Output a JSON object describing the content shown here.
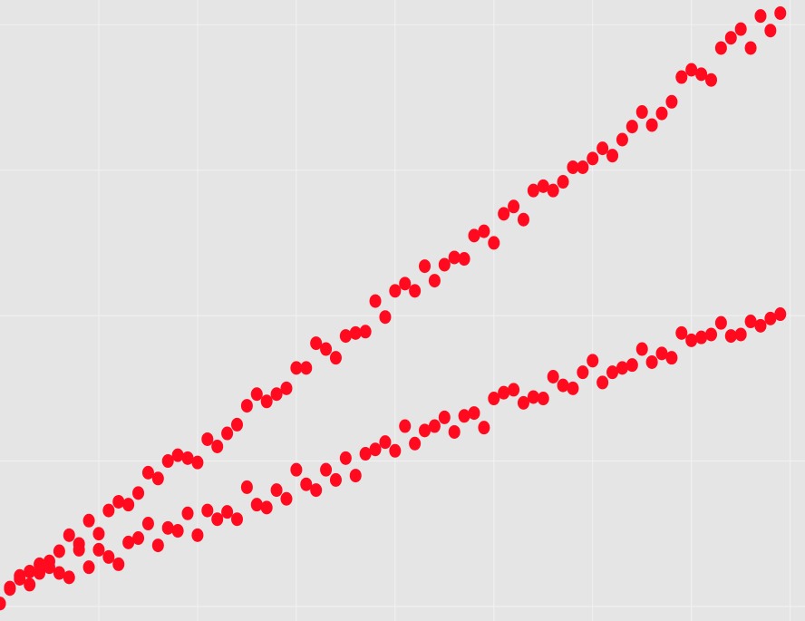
{
  "chart_data": {
    "type": "scatter",
    "x": [
      0,
      0.1,
      0.2,
      0.3,
      0.4,
      0.5,
      0.6,
      0.7,
      0.8,
      0.9,
      1,
      1.1,
      1.2,
      1.3,
      1.4,
      1.5,
      1.6,
      1.7,
      1.8,
      1.9,
      2,
      2.1,
      2.2,
      2.3,
      2.4,
      2.5,
      2.6,
      2.7,
      2.8,
      2.9,
      3,
      3.1,
      3.2,
      3.3,
      3.4,
      3.5,
      3.6,
      3.7,
      3.8,
      3.9,
      4,
      4.1,
      4.2,
      4.3,
      4.4,
      4.5,
      4.6,
      4.7,
      4.8,
      4.9,
      5,
      5.1,
      5.2,
      5.3,
      5.4,
      5.5,
      5.6,
      5.7,
      5.8,
      5.9,
      6,
      6.1,
      6.2,
      6.3,
      6.4,
      6.5,
      6.6,
      6.7,
      6.8,
      6.9,
      7,
      7.1,
      7.2,
      7.3,
      7.4,
      7.5,
      7.6,
      7.7,
      7.8,
      7.9
    ],
    "series": [
      {
        "color": "#ff0a1e",
        "values": [
          0.02,
          0.13,
          0.21,
          0.24,
          0.29,
          0.31,
          0.38,
          0.49,
          0.43,
          0.59,
          0.5,
          0.66,
          0.72,
          0.7,
          0.78,
          0.92,
          0.88,
          1.0,
          1.04,
          1.02,
          0.99,
          1.15,
          1.1,
          1.19,
          1.25,
          1.38,
          1.46,
          1.41,
          1.46,
          1.5,
          1.64,
          1.64,
          1.81,
          1.77,
          1.71,
          1.86,
          1.88,
          1.89,
          2.1,
          1.99,
          2.17,
          2.22,
          2.17,
          2.34,
          2.24,
          2.35,
          2.4,
          2.39,
          2.55,
          2.58,
          2.5,
          2.7,
          2.75,
          2.66,
          2.86,
          2.89,
          2.86,
          2.92,
          3.02,
          3.02,
          3.08,
          3.15,
          3.1,
          3.21,
          3.3,
          3.4,
          3.31,
          3.39,
          3.47,
          3.64,
          3.69,
          3.66,
          3.62,
          3.84,
          3.91,
          3.97,
          3.84,
          4.06,
          3.96,
          4.08
        ]
      },
      {
        "color": "#ff0a1e",
        "values": [
          0.02,
          0.12,
          0.19,
          0.15,
          0.23,
          0.27,
          0.23,
          0.2,
          0.39,
          0.27,
          0.39,
          0.34,
          0.29,
          0.44,
          0.47,
          0.57,
          0.42,
          0.54,
          0.52,
          0.64,
          0.49,
          0.66,
          0.6,
          0.65,
          0.6,
          0.82,
          0.7,
          0.68,
          0.8,
          0.74,
          0.94,
          0.84,
          0.8,
          0.94,
          0.87,
          1.02,
          0.9,
          1.05,
          1.08,
          1.13,
          1.07,
          1.24,
          1.12,
          1.21,
          1.24,
          1.3,
          1.2,
          1.31,
          1.33,
          1.23,
          1.43,
          1.47,
          1.49,
          1.4,
          1.44,
          1.43,
          1.58,
          1.52,
          1.5,
          1.61,
          1.69,
          1.54,
          1.61,
          1.64,
          1.66,
          1.77,
          1.68,
          1.74,
          1.71,
          1.88,
          1.83,
          1.85,
          1.87,
          1.95,
          1.86,
          1.87,
          1.96,
          1.93,
          1.98,
          2.01
        ]
      }
    ],
    "xlim": [
      0,
      8.15
    ],
    "ylim": [
      -0.1,
      4.17
    ],
    "xticks": [
      1,
      2,
      3,
      4,
      5,
      6,
      7,
      8
    ],
    "yticks": [
      0,
      1,
      2,
      3,
      4
    ],
    "grid": true,
    "tick_labels": false
  }
}
